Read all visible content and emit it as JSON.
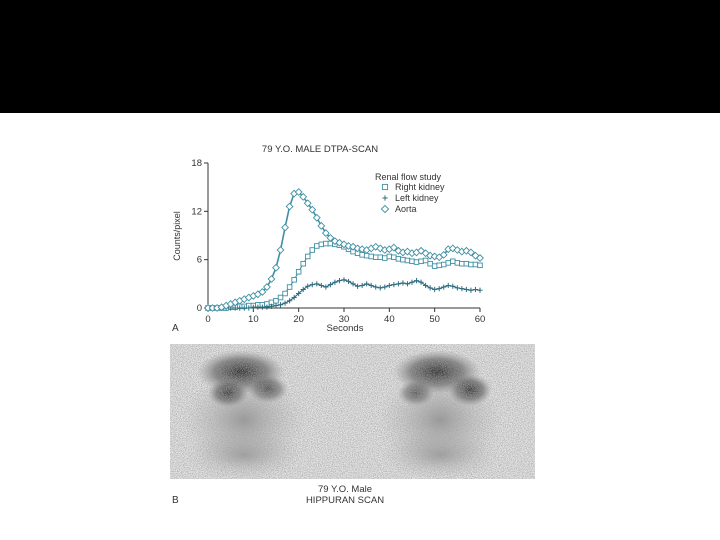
{
  "chart_data": {
    "type": "scatter",
    "title": "79 Y.O. MALE DTPA-SCAN",
    "xlabel": "Seconds",
    "ylabel": "Counts/pixel",
    "xlim": [
      0,
      60
    ],
    "ylim": [
      0,
      18
    ],
    "xticks": [
      0,
      10,
      20,
      30,
      40,
      50,
      60
    ],
    "yticks": [
      0,
      6,
      12,
      18
    ],
    "legend_title": "Renal flow study",
    "legend_position": "top-right",
    "grid": false,
    "series": [
      {
        "name": "Right kidney",
        "marker": "square",
        "x": [
          0,
          1,
          2,
          3,
          4,
          5,
          6,
          7,
          8,
          9,
          10,
          11,
          12,
          13,
          14,
          15,
          16,
          17,
          18,
          19,
          20,
          21,
          22,
          23,
          24,
          25,
          26,
          27,
          28,
          29,
          30,
          31,
          32,
          33,
          34,
          35,
          36,
          37,
          38,
          39,
          40,
          41,
          42,
          43,
          44,
          45,
          46,
          47,
          48,
          49,
          50,
          51,
          52,
          53,
          54,
          55,
          56,
          57,
          58,
          59,
          60
        ],
        "y": [
          0,
          0,
          0,
          0,
          0,
          0.1,
          0.1,
          0.2,
          0.2,
          0.3,
          0.3,
          0.4,
          0.4,
          0.5,
          0.7,
          0.9,
          1.3,
          1.8,
          2.6,
          3.5,
          4.5,
          5.5,
          6.4,
          7.2,
          7.7,
          7.9,
          8.0,
          8.0,
          7.9,
          7.8,
          7.6,
          7.3,
          7.0,
          6.8,
          6.6,
          6.5,
          6.4,
          6.3,
          6.3,
          6.2,
          6.4,
          6.3,
          6.1,
          6.0,
          5.9,
          5.8,
          5.7,
          5.8,
          5.9,
          5.5,
          5.2,
          5.3,
          5.4,
          5.6,
          5.8,
          5.6,
          5.5,
          5.5,
          5.4,
          5.4,
          5.3
        ]
      },
      {
        "name": "Left kidney",
        "marker": "plus",
        "x": [
          0,
          1,
          2,
          3,
          4,
          5,
          6,
          7,
          8,
          9,
          10,
          11,
          12,
          13,
          14,
          15,
          16,
          17,
          18,
          19,
          20,
          21,
          22,
          23,
          24,
          25,
          26,
          27,
          28,
          29,
          30,
          31,
          32,
          33,
          34,
          35,
          36,
          37,
          38,
          39,
          40,
          41,
          42,
          43,
          44,
          45,
          46,
          47,
          48,
          49,
          50,
          51,
          52,
          53,
          54,
          55,
          56,
          57,
          58,
          59,
          60
        ],
        "y": [
          0,
          0,
          0,
          0,
          0,
          0,
          0,
          0,
          0,
          0,
          0.1,
          0.1,
          0.1,
          0.1,
          0.2,
          0.3,
          0.4,
          0.6,
          0.9,
          1.3,
          1.8,
          2.3,
          2.7,
          2.9,
          3.0,
          2.8,
          2.6,
          2.9,
          3.2,
          3.4,
          3.5,
          3.3,
          3.0,
          2.7,
          2.8,
          3.0,
          2.8,
          2.6,
          2.5,
          2.6,
          2.8,
          2.9,
          3.0,
          3.1,
          3.0,
          3.2,
          3.4,
          3.2,
          2.8,
          2.5,
          2.3,
          2.4,
          2.6,
          2.8,
          2.7,
          2.5,
          2.4,
          2.3,
          2.2,
          2.3,
          2.2
        ]
      },
      {
        "name": "Aorta",
        "marker": "diamond",
        "x": [
          0,
          1,
          2,
          3,
          4,
          5,
          6,
          7,
          8,
          9,
          10,
          11,
          12,
          13,
          14,
          15,
          16,
          17,
          18,
          19,
          20,
          21,
          22,
          23,
          24,
          25,
          26,
          27,
          28,
          29,
          30,
          31,
          32,
          33,
          34,
          35,
          36,
          37,
          38,
          39,
          40,
          41,
          42,
          43,
          44,
          45,
          46,
          47,
          48,
          49,
          50,
          51,
          52,
          53,
          54,
          55,
          56,
          57,
          58,
          59,
          60
        ],
        "y": [
          0,
          0,
          0,
          0.1,
          0.3,
          0.5,
          0.7,
          0.9,
          1.1,
          1.3,
          1.5,
          1.7,
          2.0,
          2.6,
          3.6,
          5.0,
          7.2,
          10.0,
          12.6,
          14.2,
          14.4,
          13.8,
          13.0,
          12.2,
          11.2,
          10.2,
          9.3,
          8.7,
          8.3,
          8.1,
          7.9,
          7.7,
          7.6,
          7.4,
          7.3,
          7.2,
          7.4,
          7.6,
          7.4,
          7.2,
          7.3,
          7.5,
          7.1,
          6.9,
          7.0,
          6.8,
          6.9,
          7.1,
          6.8,
          6.5,
          6.4,
          6.3,
          6.6,
          7.3,
          7.4,
          7.2,
          7.0,
          7.1,
          6.9,
          6.5,
          6.2
        ]
      }
    ]
  },
  "panel_a_letter": "A",
  "panel_b_letter": "B",
  "scan_caption_line1": "79 Y.O. Male",
  "scan_caption_line2": "HIPPURAN SCAN",
  "colors": {
    "top_band": "#000000",
    "series": "#3f8fa3",
    "left_kidney": "#2f6d80",
    "axis": "#333333"
  }
}
